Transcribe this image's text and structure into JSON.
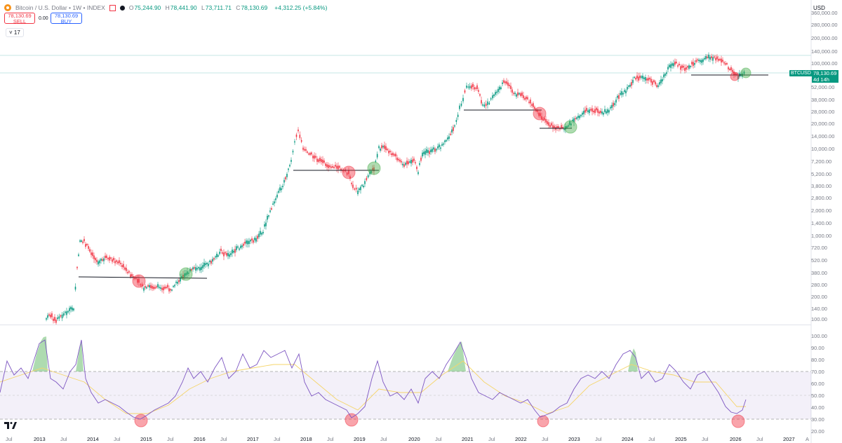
{
  "header": {
    "symbol_title": "Bitcoin / U.S. Dollar • 1W • INDEX",
    "ohlc": [
      {
        "key": "O",
        "value": "75,244.90"
      },
      {
        "key": "H",
        "value": "78,441.90"
      },
      {
        "key": "L",
        "value": "73,711.71"
      },
      {
        "key": "C",
        "value": "78,130.69"
      }
    ],
    "change": "+4,312.25 (+5.84%)",
    "sell_price": "78,130.69",
    "sell_label": "SELL",
    "buy_price": "78,130.69",
    "buy_label": "BUY",
    "spread": "0.00",
    "indicators_count": "17",
    "currency": "USD"
  },
  "price_axis": {
    "labels": [
      "360,000.00",
      "280,000.00",
      "200,000.00",
      "140,000.00",
      "100,000.00",
      "52,000.00",
      "38,000.00",
      "28,000.00",
      "20,000.00",
      "14,000.00",
      "10,000.00",
      "7,200.00",
      "5,200.00",
      "3,800.00",
      "2,800.00",
      "2,000.00",
      "1,400.00",
      "1,000.00",
      "720.00",
      "520.00",
      "380.00",
      "280.00",
      "200.00",
      "140.00",
      "100.00"
    ],
    "current_tag": "BTCUSD",
    "current_price": "78,130.69",
    "countdown": "4d 14h"
  },
  "rsi_axis": {
    "labels": [
      "100.00",
      "90.00",
      "80.00",
      "70.00",
      "60.00",
      "50.00",
      "40.00",
      "30.00",
      "20.00"
    ]
  },
  "time_axis": {
    "labels": [
      {
        "text": "Jul",
        "year": false
      },
      {
        "text": "2013",
        "year": true
      },
      {
        "text": "Jul",
        "year": false
      },
      {
        "text": "2014",
        "year": true
      },
      {
        "text": "Jul",
        "year": false
      },
      {
        "text": "2015",
        "year": true
      },
      {
        "text": "Jul",
        "year": false
      },
      {
        "text": "2016",
        "year": true
      },
      {
        "text": "Jul",
        "year": false
      },
      {
        "text": "2017",
        "year": true
      },
      {
        "text": "Jul",
        "year": false
      },
      {
        "text": "2018",
        "year": true
      },
      {
        "text": "Jul",
        "year": false
      },
      {
        "text": "2019",
        "year": true
      },
      {
        "text": "Jul",
        "year": false
      },
      {
        "text": "2020",
        "year": true
      },
      {
        "text": "Jul",
        "year": false
      },
      {
        "text": "2021",
        "year": true
      },
      {
        "text": "Jul",
        "year": false
      },
      {
        "text": "2022",
        "year": true
      },
      {
        "text": "Jul",
        "year": false
      },
      {
        "text": "2023",
        "year": true
      },
      {
        "text": "Jul",
        "year": false
      },
      {
        "text": "2024",
        "year": true
      },
      {
        "text": "Jul",
        "year": false
      },
      {
        "text": "2025",
        "year": true
      },
      {
        "text": "Jul",
        "year": false
      },
      {
        "text": "2026",
        "year": true
      },
      {
        "text": "Jul",
        "year": false
      },
      {
        "text": "2027",
        "year": true
      },
      {
        "text": "A",
        "year": false
      }
    ]
  },
  "colors": {
    "up": "#089981",
    "down": "#f23645",
    "rsi_line": "#7e57c2",
    "rsi_ma": "#f5d56b",
    "rsi_band": "#7e57c2",
    "buy_marker": "#4caf50",
    "sell_marker": "#f23645"
  }
}
